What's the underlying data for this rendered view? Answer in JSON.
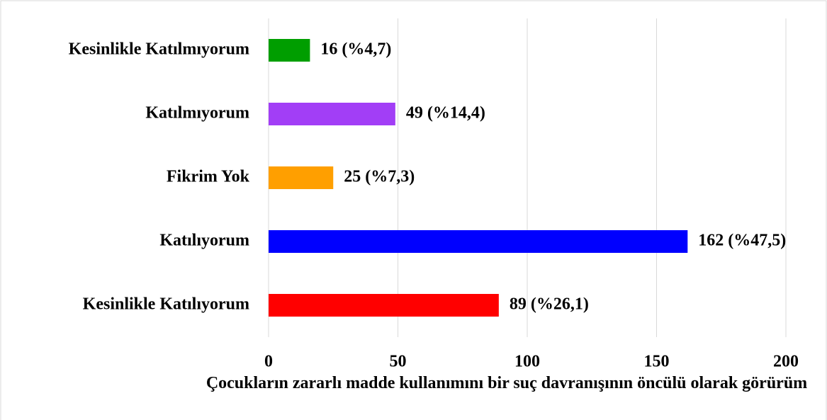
{
  "chart_data": {
    "type": "barh",
    "categories": [
      "Kesinlikle Katılmıyorum",
      "Katılmıyorum",
      "Fikrim Yok",
      "Katılıyorum",
      "Kesinlikle Katılıyorum"
    ],
    "values": [
      16,
      49,
      25,
      162,
      89
    ],
    "value_labels": [
      "16 (%4,7)",
      "49 (%14,4)",
      "25 (%7,3)",
      "162 (%47,5)",
      "89 (%26,1)"
    ],
    "colors": [
      "#009e00",
      "#a23ef6",
      "#ff9f00",
      "#0000ff",
      "#ff0000"
    ],
    "xlim": [
      0,
      200
    ],
    "xticks": [
      0,
      50,
      100,
      150,
      200
    ],
    "grid": true,
    "xlabel": "Çocukların zararlı madde kullanımını bir suç davranışının öncülü olarak görürüm"
  }
}
